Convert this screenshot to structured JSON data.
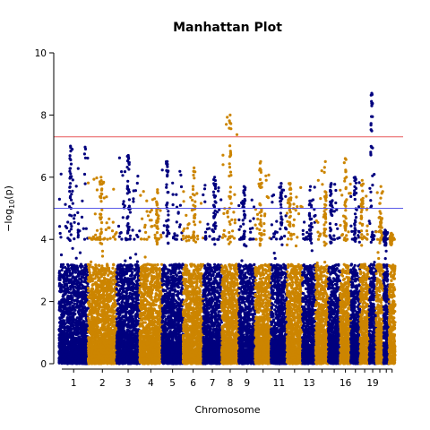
{
  "chart_data": {
    "type": "scatter",
    "title": "Manhattan Plot",
    "xlabel": "Chromosome",
    "ylabel": "−log10(p)",
    "ylabel_parts": {
      "prefix": "−log",
      "subscript": "10",
      "suffix": "(p)"
    },
    "ylim": [
      0,
      10
    ],
    "yticks": [
      "0",
      "2",
      "4",
      "6",
      "8",
      "10"
    ],
    "ytick_values": [
      0,
      2,
      4,
      6,
      8,
      10
    ],
    "xtick_labels": [
      "1",
      "2",
      "3",
      "4",
      "5",
      "6",
      "7",
      "8",
      "9",
      "11",
      "13",
      "16",
      "19"
    ],
    "chromosomes": [
      "1",
      "2",
      "3",
      "4",
      "5",
      "6",
      "7",
      "8",
      "9",
      "10",
      "11",
      "12",
      "13",
      "14",
      "15",
      "16",
      "17",
      "18",
      "19",
      "20",
      "21",
      "22"
    ],
    "chromosome_peak": [
      7.0,
      6.0,
      6.7,
      5.6,
      6.5,
      6.3,
      6.0,
      8.0,
      5.7,
      6.5,
      5.8,
      5.8,
      5.7,
      6.5,
      5.8,
      6.6,
      6.0,
      5.9,
      8.7,
      5.7,
      4.3,
      4.2
    ],
    "genomewide_threshold": 7.3,
    "suggestive_threshold": 5.0,
    "colors": {
      "odd": "#00007f",
      "even": "#cc8500",
      "genomewide_line": "#e8585a",
      "suggestive_line": "#5a5ae8"
    },
    "grid": false,
    "legend": "none"
  }
}
